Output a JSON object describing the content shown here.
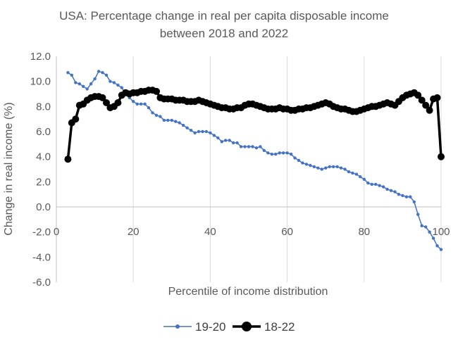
{
  "chart_data": {
    "type": "line",
    "title": "USA: Percentage change in real per capita disposable income",
    "subtitle": "between 2018 and 2022",
    "xlabel": "Percentile of income distribution",
    "ylabel": "Change in real income (%)",
    "xlim": [
      0,
      100
    ],
    "ylim": [
      -6,
      12
    ],
    "x_ticks": [
      "0",
      "20",
      "40",
      "60",
      "80",
      "100"
    ],
    "y_ticks": [
      "-6.0",
      "-4.0",
      "-2.0",
      "0.0",
      "2.0",
      "4.0",
      "6.0",
      "8.0",
      "10.0",
      "12.0"
    ],
    "grid": "vertical",
    "legend_position": "bottom",
    "series": [
      {
        "name": "19-20",
        "color": "#4472C4",
        "points": [
          [
            3,
            10.7
          ],
          [
            4,
            10.5
          ],
          [
            5,
            9.9
          ],
          [
            6,
            9.8
          ],
          [
            7,
            9.6
          ],
          [
            8,
            9.4
          ],
          [
            9,
            9.8
          ],
          [
            10,
            10.2
          ],
          [
            11,
            10.8
          ],
          [
            12,
            10.7
          ],
          [
            13,
            10.5
          ],
          [
            14,
            10.0
          ],
          [
            15,
            9.9
          ],
          [
            16,
            9.7
          ],
          [
            17,
            9.5
          ],
          [
            18,
            9.0
          ],
          [
            19,
            8.7
          ],
          [
            20,
            8.4
          ],
          [
            21,
            8.2
          ],
          [
            22,
            8.2
          ],
          [
            23,
            8.2
          ],
          [
            24,
            7.9
          ],
          [
            25,
            7.5
          ],
          [
            26,
            7.3
          ],
          [
            27,
            7.2
          ],
          [
            28,
            6.9
          ],
          [
            29,
            6.9
          ],
          [
            30,
            6.9
          ],
          [
            31,
            6.8
          ],
          [
            32,
            6.7
          ],
          [
            33,
            6.5
          ],
          [
            34,
            6.3
          ],
          [
            35,
            6.1
          ],
          [
            36,
            5.9
          ],
          [
            37,
            6.0
          ],
          [
            38,
            6.0
          ],
          [
            39,
            6.0
          ],
          [
            40,
            5.9
          ],
          [
            41,
            5.7
          ],
          [
            42,
            5.5
          ],
          [
            43,
            5.2
          ],
          [
            44,
            5.3
          ],
          [
            45,
            5.3
          ],
          [
            46,
            5.1
          ],
          [
            47,
            5.1
          ],
          [
            48,
            4.8
          ],
          [
            49,
            4.8
          ],
          [
            50,
            4.8
          ],
          [
            51,
            4.8
          ],
          [
            52,
            4.7
          ],
          [
            53,
            4.8
          ],
          [
            54,
            4.5
          ],
          [
            55,
            4.3
          ],
          [
            56,
            4.2
          ],
          [
            57,
            4.2
          ],
          [
            58,
            4.3
          ],
          [
            59,
            4.3
          ],
          [
            60,
            4.3
          ],
          [
            61,
            4.2
          ],
          [
            62,
            3.9
          ],
          [
            63,
            3.7
          ],
          [
            64,
            3.5
          ],
          [
            65,
            3.4
          ],
          [
            66,
            3.3
          ],
          [
            67,
            3.2
          ],
          [
            68,
            3.1
          ],
          [
            69,
            3.0
          ],
          [
            70,
            3.1
          ],
          [
            71,
            3.2
          ],
          [
            72,
            3.2
          ],
          [
            73,
            3.2
          ],
          [
            74,
            3.1
          ],
          [
            75,
            3.0
          ],
          [
            76,
            2.8
          ],
          [
            77,
            2.7
          ],
          [
            78,
            2.6
          ],
          [
            79,
            2.4
          ],
          [
            80,
            2.2
          ],
          [
            81,
            1.9
          ],
          [
            82,
            1.8
          ],
          [
            83,
            1.8
          ],
          [
            84,
            1.7
          ],
          [
            85,
            1.6
          ],
          [
            86,
            1.4
          ],
          [
            87,
            1.3
          ],
          [
            88,
            1.2
          ],
          [
            89,
            1.0
          ],
          [
            90,
            0.9
          ],
          [
            91,
            0.8
          ],
          [
            92,
            0.8
          ],
          [
            93,
            0.4
          ],
          [
            94,
            -0.6
          ],
          [
            95,
            -1.5
          ],
          [
            96,
            -1.6
          ],
          [
            97,
            -2.0
          ],
          [
            98,
            -2.5
          ],
          [
            99,
            -3.1
          ],
          [
            100,
            -3.4
          ]
        ]
      },
      {
        "name": "18-22",
        "color": "#000000",
        "points": [
          [
            3,
            3.8
          ],
          [
            4,
            6.7
          ],
          [
            5,
            7.0
          ],
          [
            6,
            8.1
          ],
          [
            7,
            8.2
          ],
          [
            8,
            8.5
          ],
          [
            9,
            8.7
          ],
          [
            10,
            8.8
          ],
          [
            11,
            8.8
          ],
          [
            12,
            8.7
          ],
          [
            13,
            8.3
          ],
          [
            14,
            7.9
          ],
          [
            15,
            8.0
          ],
          [
            16,
            8.3
          ],
          [
            17,
            8.9
          ],
          [
            18,
            9.1
          ],
          [
            19,
            9.0
          ],
          [
            20,
            9.1
          ],
          [
            21,
            9.1
          ],
          [
            22,
            9.2
          ],
          [
            23,
            9.2
          ],
          [
            24,
            9.3
          ],
          [
            25,
            9.3
          ],
          [
            26,
            9.2
          ],
          [
            27,
            8.7
          ],
          [
            28,
            8.6
          ],
          [
            29,
            8.6
          ],
          [
            30,
            8.6
          ],
          [
            31,
            8.5
          ],
          [
            32,
            8.5
          ],
          [
            33,
            8.5
          ],
          [
            34,
            8.4
          ],
          [
            35,
            8.4
          ],
          [
            36,
            8.4
          ],
          [
            37,
            8.5
          ],
          [
            38,
            8.4
          ],
          [
            39,
            8.3
          ],
          [
            40,
            8.2
          ],
          [
            41,
            8.1
          ],
          [
            42,
            8.0
          ],
          [
            43,
            7.9
          ],
          [
            44,
            7.9
          ],
          [
            45,
            7.8
          ],
          [
            46,
            7.8
          ],
          [
            47,
            7.9
          ],
          [
            48,
            7.9
          ],
          [
            49,
            8.1
          ],
          [
            50,
            8.2
          ],
          [
            51,
            8.2
          ],
          [
            52,
            8.1
          ],
          [
            53,
            8.0
          ],
          [
            54,
            7.9
          ],
          [
            55,
            7.8
          ],
          [
            56,
            7.8
          ],
          [
            57,
            7.8
          ],
          [
            58,
            7.9
          ],
          [
            59,
            7.8
          ],
          [
            60,
            7.8
          ],
          [
            61,
            7.7
          ],
          [
            62,
            7.7
          ],
          [
            63,
            7.8
          ],
          [
            64,
            7.8
          ],
          [
            65,
            7.9
          ],
          [
            66,
            7.9
          ],
          [
            67,
            8.0
          ],
          [
            68,
            8.1
          ],
          [
            69,
            8.2
          ],
          [
            70,
            8.3
          ],
          [
            71,
            8.2
          ],
          [
            72,
            8.0
          ],
          [
            73,
            7.9
          ],
          [
            74,
            7.8
          ],
          [
            75,
            7.8
          ],
          [
            76,
            7.7
          ],
          [
            77,
            7.6
          ],
          [
            78,
            7.6
          ],
          [
            79,
            7.7
          ],
          [
            80,
            7.8
          ],
          [
            81,
            7.9
          ],
          [
            82,
            8.0
          ],
          [
            83,
            8.0
          ],
          [
            84,
            8.1
          ],
          [
            85,
            8.2
          ],
          [
            86,
            8.3
          ],
          [
            87,
            8.2
          ],
          [
            88,
            8.1
          ],
          [
            89,
            8.4
          ],
          [
            90,
            8.7
          ],
          [
            91,
            8.9
          ],
          [
            92,
            9.0
          ],
          [
            93,
            9.1
          ],
          [
            94,
            8.9
          ],
          [
            95,
            8.5
          ],
          [
            96,
            8.1
          ],
          [
            97,
            7.7
          ],
          [
            98,
            8.6
          ],
          [
            99,
            8.7
          ],
          [
            100,
            4.0
          ]
        ]
      }
    ]
  }
}
